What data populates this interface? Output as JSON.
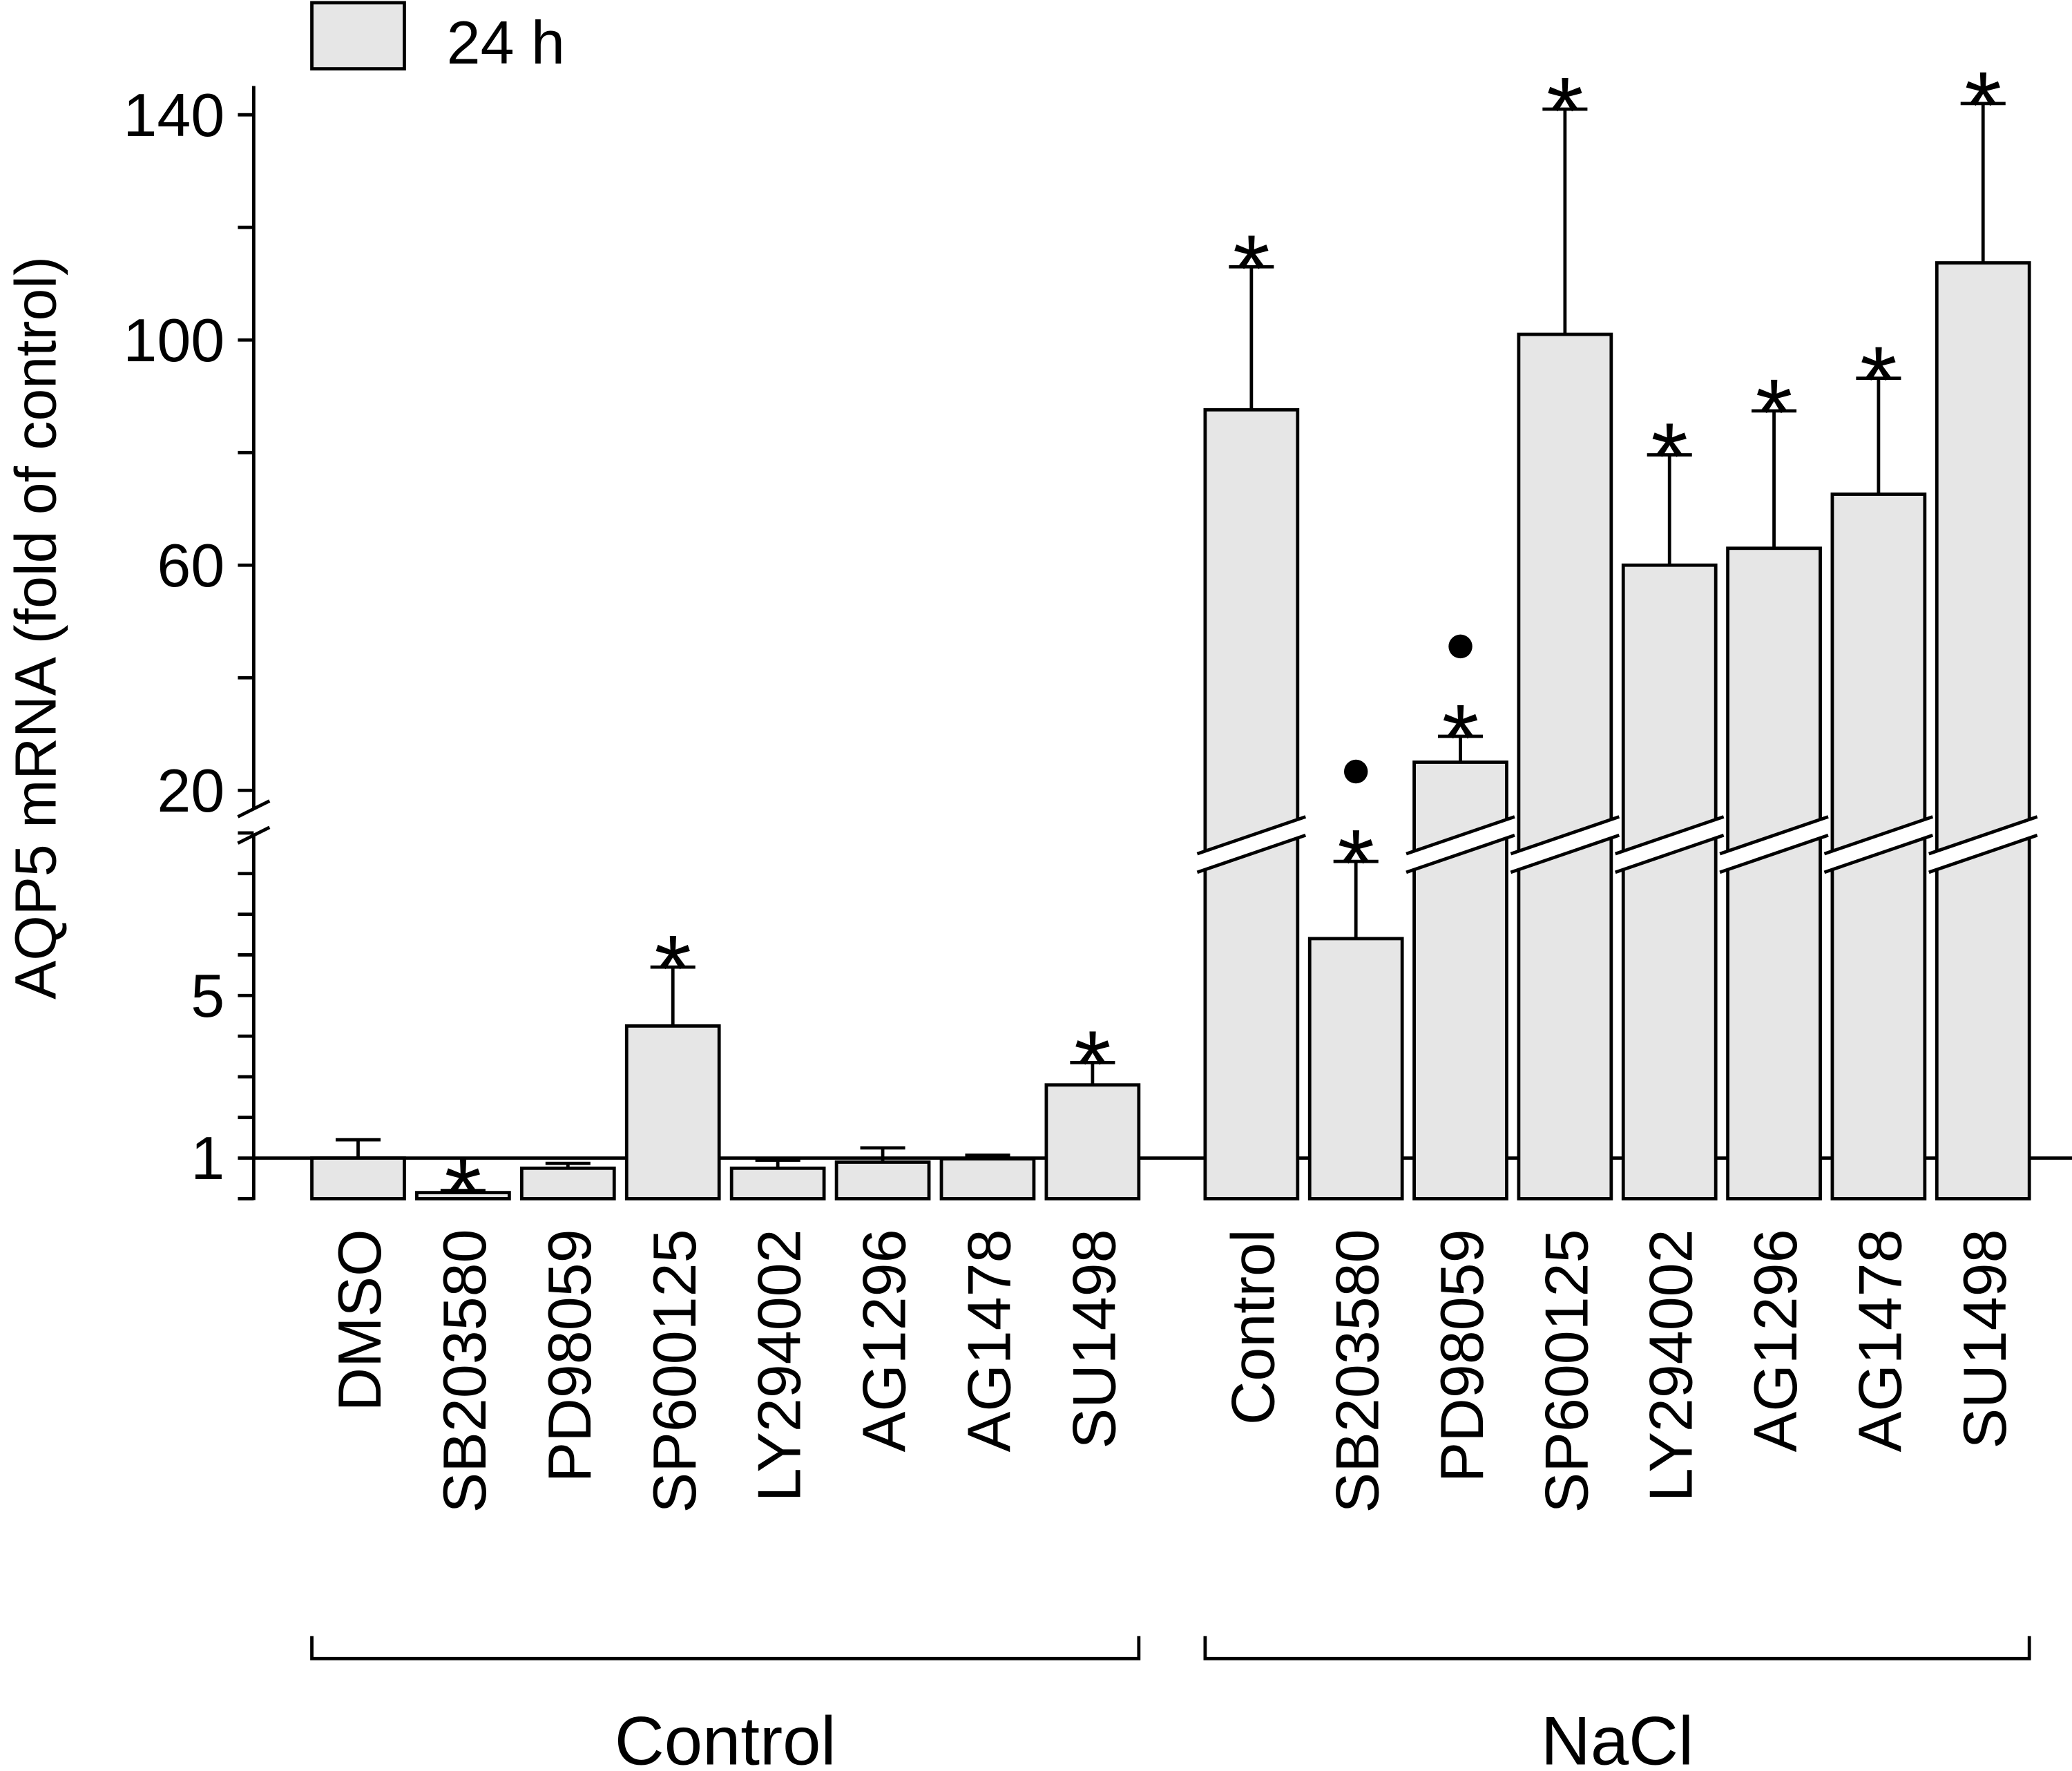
{
  "chart_data": {
    "type": "bar",
    "ylabel": "AQP5 mRNA (fold of control)",
    "legend": [
      {
        "name": "24 h",
        "color": "#e6e6e6"
      }
    ],
    "legend_placement": "top-left",
    "y_axis": {
      "broken": true,
      "lower_range": [
        0,
        9
      ],
      "upper_range": [
        20,
        140
      ],
      "tick_labels": [
        "1",
        "5",
        "20",
        "60",
        "100",
        "140"
      ],
      "reference_line": 1
    },
    "bar_color": "#e6e6e6",
    "groups": [
      {
        "label": "Control",
        "categories": [
          "DMSO",
          "SB203580",
          "PD98059",
          "SP600125",
          "LY294002",
          "AG1296",
          "AG1478",
          "SU1498"
        ],
        "values": [
          1.0,
          0.15,
          0.75,
          4.25,
          0.75,
          0.9,
          0.98,
          2.8
        ],
        "errors_upper": [
          1.45,
          0.2,
          0.87,
          5.7,
          0.95,
          1.25,
          1.07,
          3.35
        ],
        "asterisk": [
          false,
          true,
          false,
          true,
          false,
          false,
          false,
          true
        ],
        "dot": [
          false,
          false,
          false,
          false,
          false,
          false,
          false,
          false
        ]
      },
      {
        "label": "NaCl",
        "categories": [
          "Control",
          "SB203580",
          "PD98059",
          "SP600125",
          "LY294002",
          "AG1296",
          "AG1478",
          "SU1498"
        ],
        "values": [
          87.6,
          6.4,
          25,
          101,
          60,
          63,
          72.6,
          113.7
        ],
        "errors_upper": [
          113,
          8.3,
          29.6,
          141,
          79.6,
          87.4,
          93.2,
          142
        ],
        "asterisk": [
          true,
          true,
          true,
          true,
          true,
          true,
          true,
          true
        ],
        "dot": [
          false,
          true,
          true,
          false,
          false,
          false,
          false,
          false
        ]
      }
    ],
    "grid": false
  }
}
